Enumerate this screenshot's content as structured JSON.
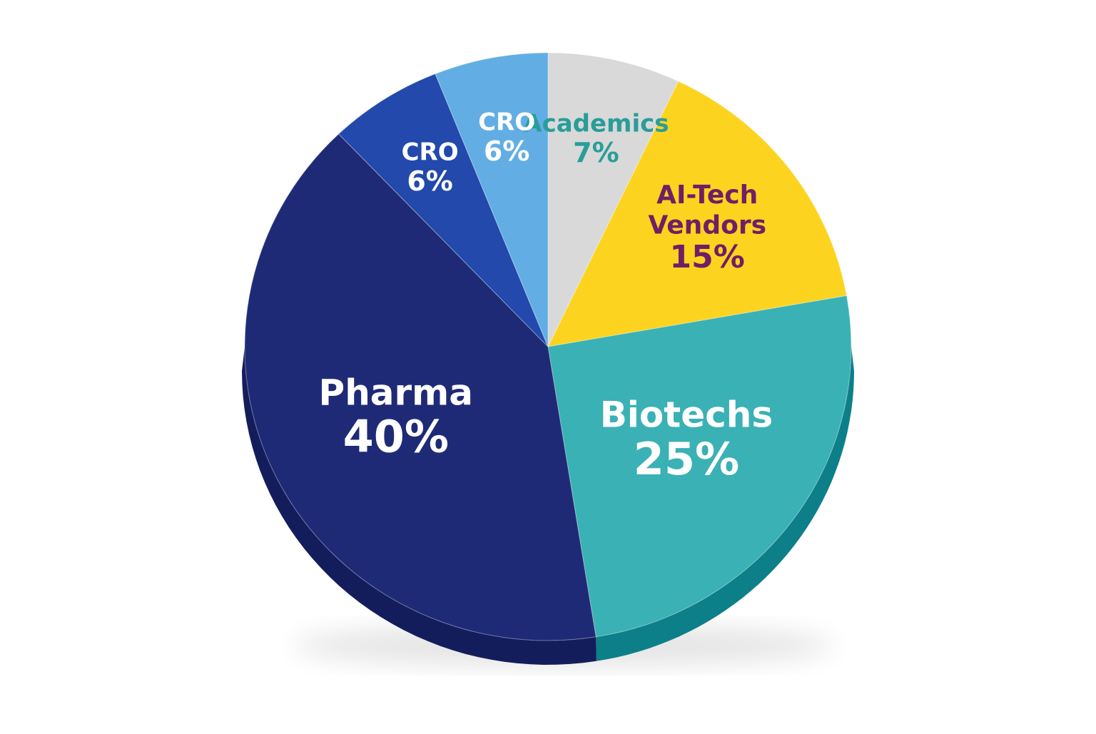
{
  "chart_data": {
    "type": "pie",
    "style": "3d-extruded",
    "start_angle_deg": 0,
    "direction": "clockwise",
    "slices": [
      {
        "label": "Academics",
        "value": 7,
        "value_label": "7%",
        "color": "#d9d9d9",
        "side_color": "#b8b8b8",
        "text_color": "#2a9d99"
      },
      {
        "label": "AI-Tech Vendors",
        "label_lines": [
          "AI-Tech",
          "Vendors"
        ],
        "value": 15,
        "value_label": "15%",
        "color": "#fcd31f",
        "side_color": "#d8ad06",
        "text_color": "#6e1f66"
      },
      {
        "label": "Biotechs",
        "value": 25,
        "value_label": "25%",
        "color": "#3ab1b5",
        "side_color": "#0d7f88",
        "text_color": "#ffffff"
      },
      {
        "label": "Pharma",
        "value": 40,
        "value_label": "40%",
        "color": "#1f2a77",
        "side_color": "#141d5c",
        "text_color": "#ffffff"
      },
      {
        "label": "CRO",
        "value": 6,
        "value_label": "6%",
        "color": "#2249ab",
        "side_color": "#1a3a8c",
        "text_color": "#ffffff"
      },
      {
        "label": "CRO",
        "value": 6,
        "value_label": "6%",
        "color": "#62aee4",
        "side_color": "#4a93c8",
        "text_color": "#ffffff"
      }
    ]
  }
}
